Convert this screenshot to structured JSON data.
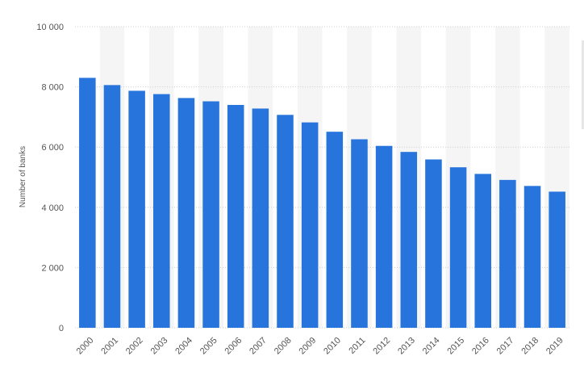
{
  "chart_data": {
    "type": "bar",
    "ylabel": "Number of banks",
    "xlabel": "",
    "title": "",
    "ylim": [
      0,
      10000
    ],
    "yticks": [
      0,
      2000,
      4000,
      6000,
      8000,
      10000
    ],
    "ytick_labels": [
      "0",
      "2 000",
      "4 000",
      "6 000",
      "8 000",
      "10 000"
    ],
    "grid": "horizontal dotted",
    "legend": "none",
    "bar_color": "#2775dc",
    "band_color": "#f5f5f5",
    "categories": [
      "2000",
      "2001",
      "2002",
      "2003",
      "2004",
      "2005",
      "2006",
      "2007",
      "2008",
      "2009",
      "2010",
      "2011",
      "2012",
      "2013",
      "2014",
      "2015",
      "2016",
      "2017",
      "2018",
      "2019"
    ],
    "values": [
      8300,
      8060,
      7870,
      7760,
      7630,
      7520,
      7400,
      7280,
      7070,
      6820,
      6510,
      6260,
      6040,
      5840,
      5590,
      5330,
      5110,
      4910,
      4710,
      4520
    ]
  }
}
